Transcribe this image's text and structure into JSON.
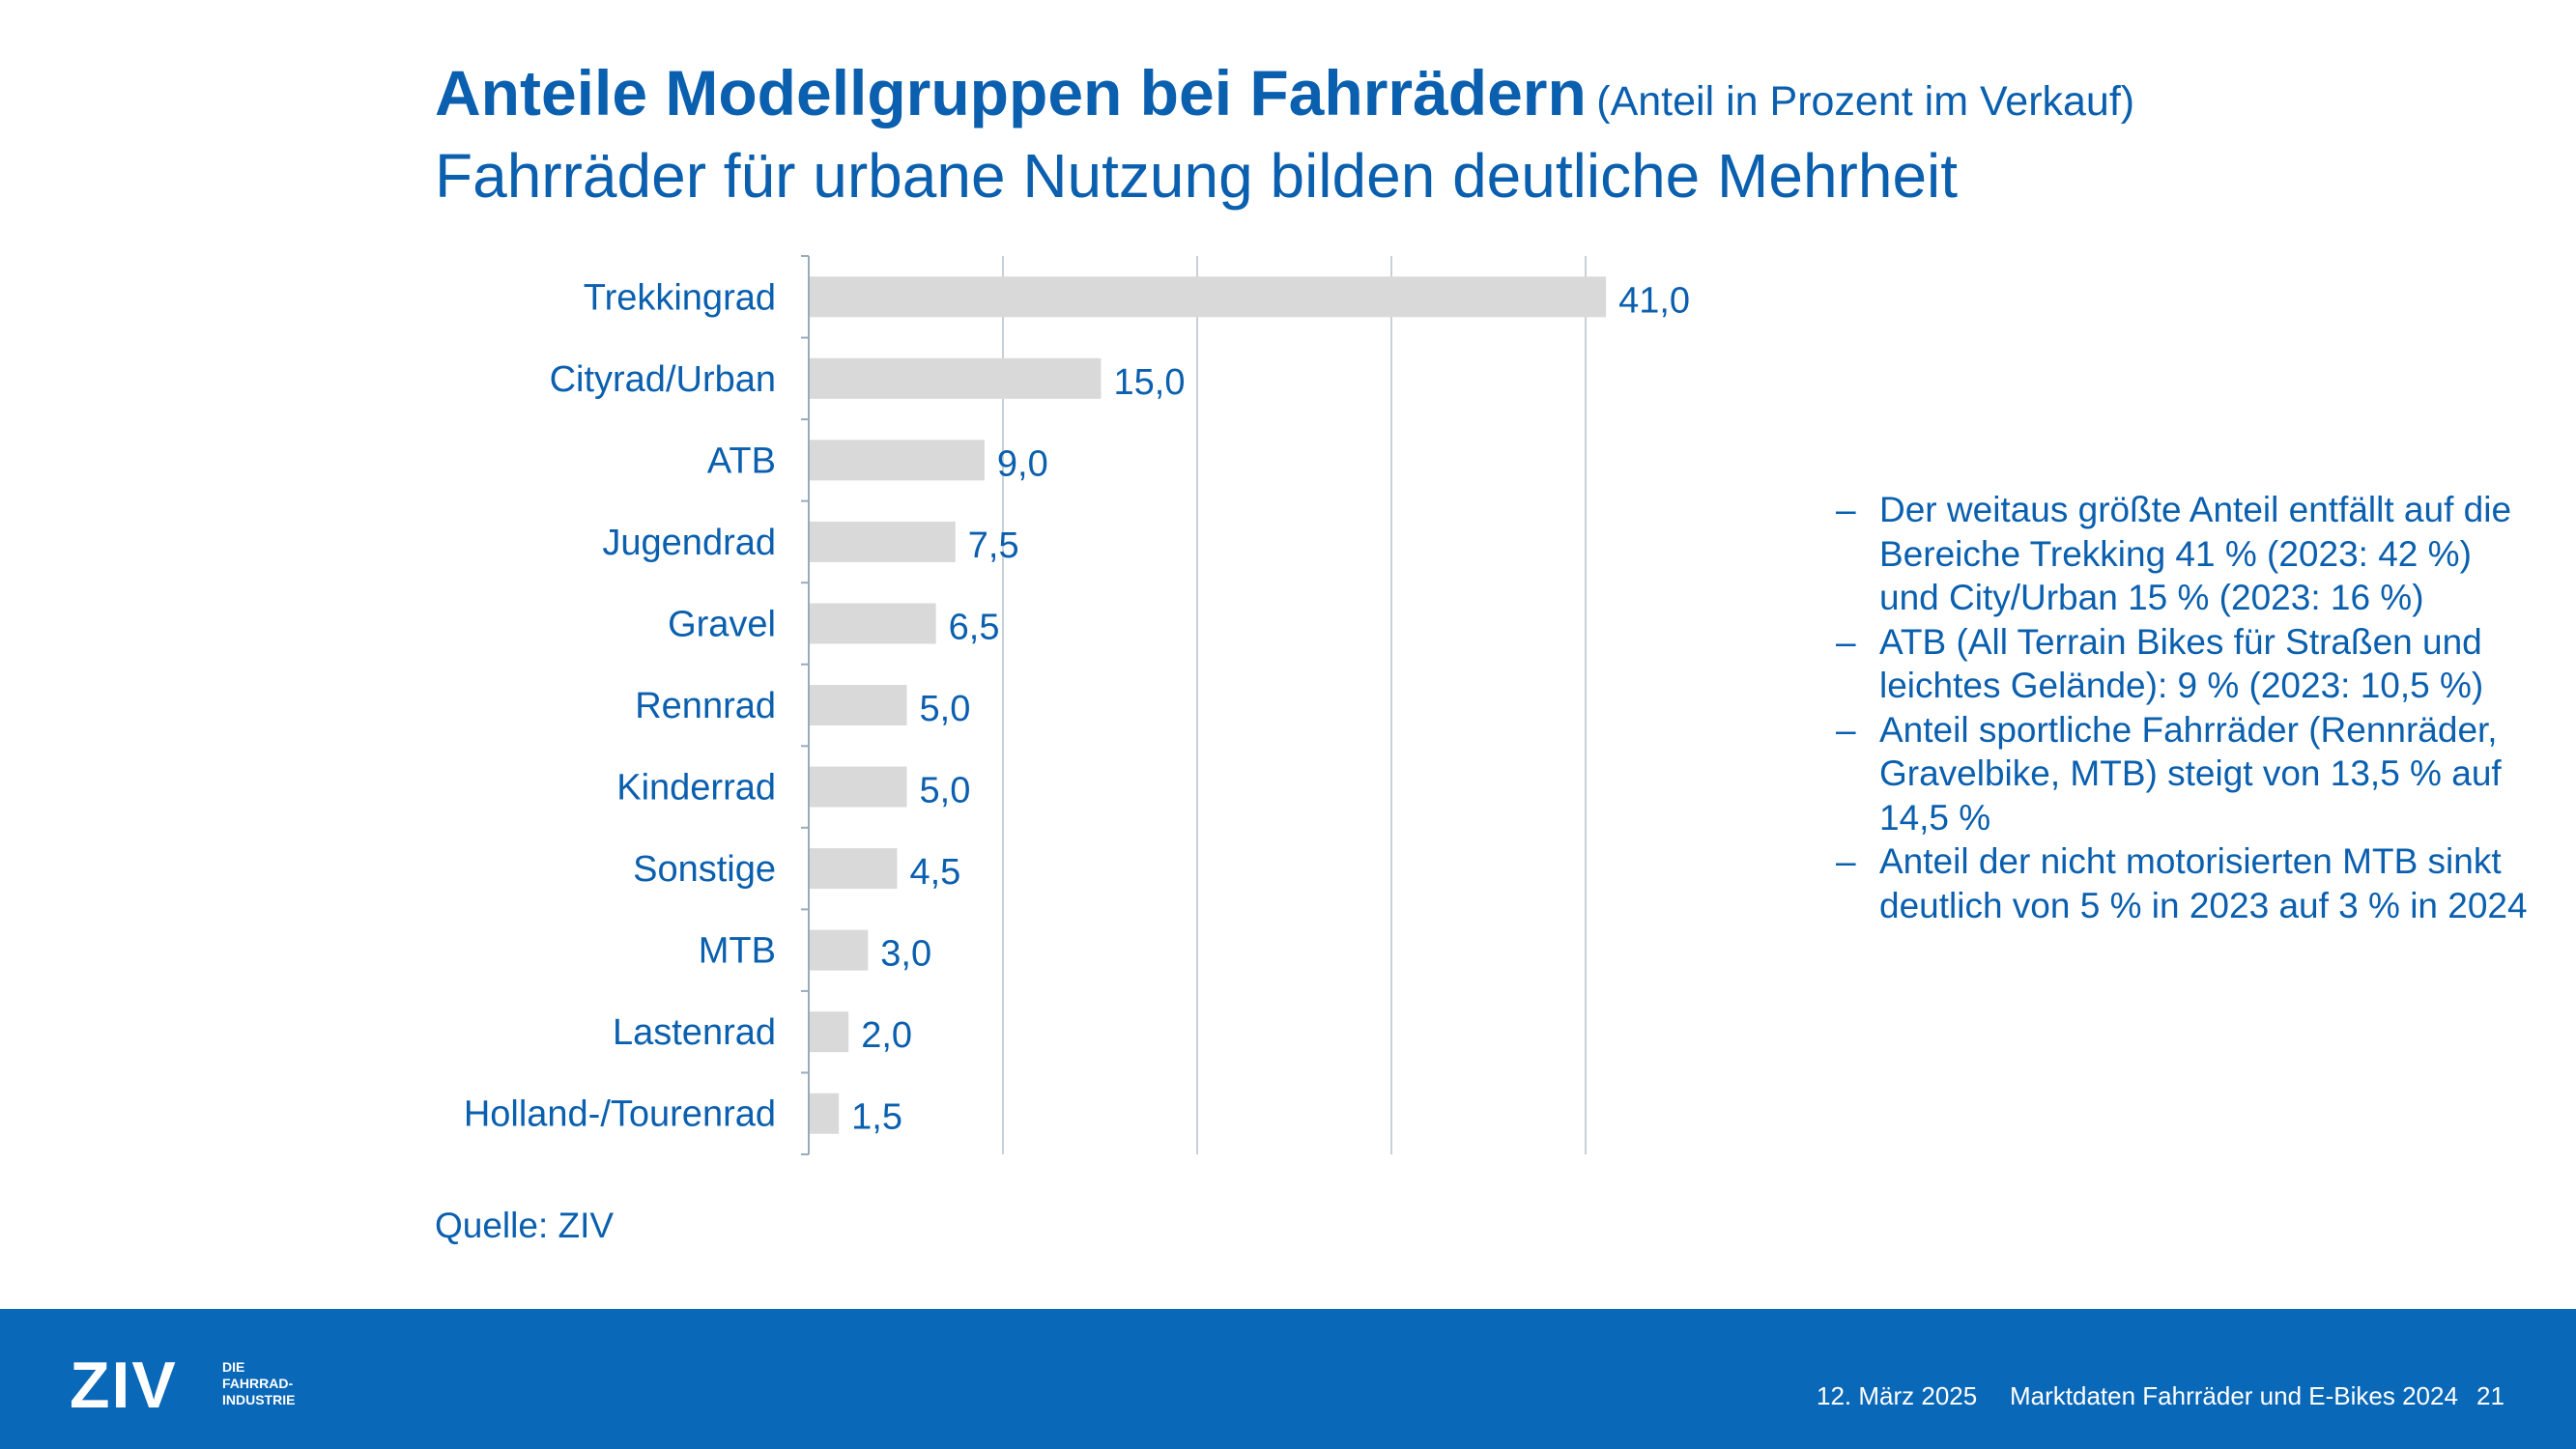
{
  "slide": {
    "title": "Anteile Modellgruppen bei Fahrrädern",
    "title_note": "(Anteil in Prozent im Verkauf)",
    "subtitle": "Fahrräder für urbane Nutzung bilden deutliche Mehrheit",
    "source": "Quelle: ZIV"
  },
  "chart_data": {
    "type": "bar",
    "orientation": "horizontal",
    "categories": [
      "Trekkingrad",
      "Cityrad/Urban",
      "ATB",
      "Jugendrad",
      "Gravel",
      "Rennrad",
      "Kinderrad",
      "Sonstige",
      "MTB",
      "Lastenrad",
      "Holland-/Tourenrad"
    ],
    "values": [
      41.0,
      15.0,
      9.0,
      7.5,
      6.5,
      5.0,
      5.0,
      4.5,
      3.0,
      2.0,
      1.5
    ],
    "value_labels": [
      "41,0",
      "15,0",
      "9,0",
      "7,5",
      "6,5",
      "5,0",
      "5,0",
      "4,5",
      "3,0",
      "2,0",
      "1,5"
    ],
    "xlim": [
      0,
      50
    ],
    "x_gridlines": [
      10,
      20,
      30,
      40
    ],
    "grid": true,
    "bar_color": "#d9d9d9"
  },
  "bullets": [
    "Der weitaus größte Anteil entfällt auf die Bereiche Trekking 41 % (2023: 42 %) und City/Urban 15 % (2023: 16 %)",
    "ATB (All Terrain Bikes für Straßen und leichtes Gelände): 9 % (2023: 10,5 %)",
    "Anteil sportliche Fahrräder (Rennräder, Gravelbike, MTB) steigt von 13,5 % auf 14,5 %",
    "Anteil der nicht motorisierten MTB sinkt deutlich von 5 % in 2023 auf 3 % in 2024"
  ],
  "bullet_marker": "–",
  "footer": {
    "logo": "ZIV",
    "logo_tagline": [
      "DIE",
      "FAHRRAD-",
      "INDUSTRIE"
    ],
    "date": "12. März 2025",
    "report": "Marktdaten Fahrräder und E-Bikes 2024",
    "page": "21"
  },
  "colors": {
    "brand_blue": "#0a5fae",
    "footer_blue": "#0a68b9",
    "bar_gray": "#d9d9d9",
    "grid": "#c8d0d8"
  }
}
